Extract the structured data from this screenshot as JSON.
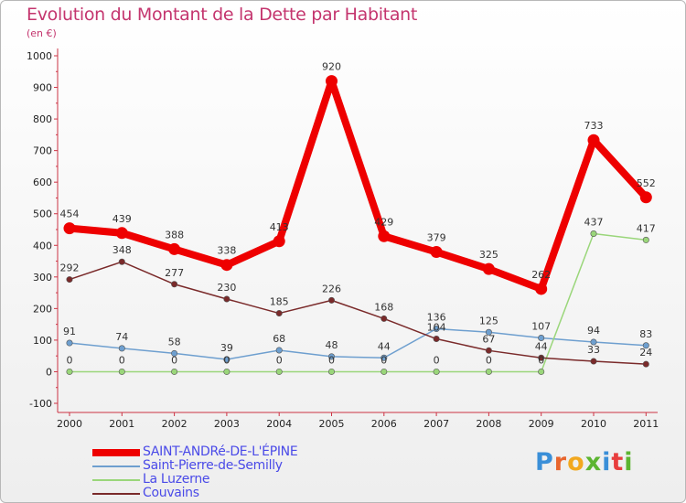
{
  "title": "Evolution du Montant de la Dette par Habitant",
  "subtitle": "(en €)",
  "logo": {
    "text": "Proxiti",
    "colors": [
      "#3a8fd8",
      "#e8662e",
      "#f2a81f",
      "#5cb531",
      "#3a8fd8",
      "#e83e3e",
      "#5cb531"
    ]
  },
  "chart_data": {
    "type": "line",
    "x": [
      "2000",
      "2001",
      "2002",
      "2003",
      "2004",
      "2005",
      "2006",
      "2007",
      "2008",
      "2009",
      "2010",
      "2011"
    ],
    "ylim": [
      -100,
      1000
    ],
    "yticks": [
      -100,
      0,
      100,
      200,
      300,
      400,
      500,
      600,
      700,
      800,
      900,
      1000
    ],
    "grid": false,
    "legend_position": "bottom-left",
    "series": [
      {
        "name": "SAINT-ANDRé-DE-L'ÉPINE",
        "color": "#ee0000",
        "thick": true,
        "values": [
          454,
          439,
          388,
          338,
          413,
          920,
          429,
          379,
          325,
          262,
          733,
          552
        ]
      },
      {
        "name": "Saint-Pierre-de-Semilly",
        "color": "#6e9fcf",
        "thick": false,
        "values": [
          91,
          74,
          58,
          39,
          68,
          48,
          44,
          136,
          125,
          107,
          94,
          83
        ]
      },
      {
        "name": "La Luzerne",
        "color": "#9ad67a",
        "thick": false,
        "values": [
          0,
          0,
          0,
          0,
          0,
          0,
          0,
          0,
          0,
          0,
          437,
          417
        ]
      },
      {
        "name": "Couvains",
        "color": "#7a2a2a",
        "thick": false,
        "values": [
          292,
          348,
          277,
          230,
          185,
          226,
          168,
          104,
          67,
          44,
          33,
          24
        ]
      }
    ]
  }
}
